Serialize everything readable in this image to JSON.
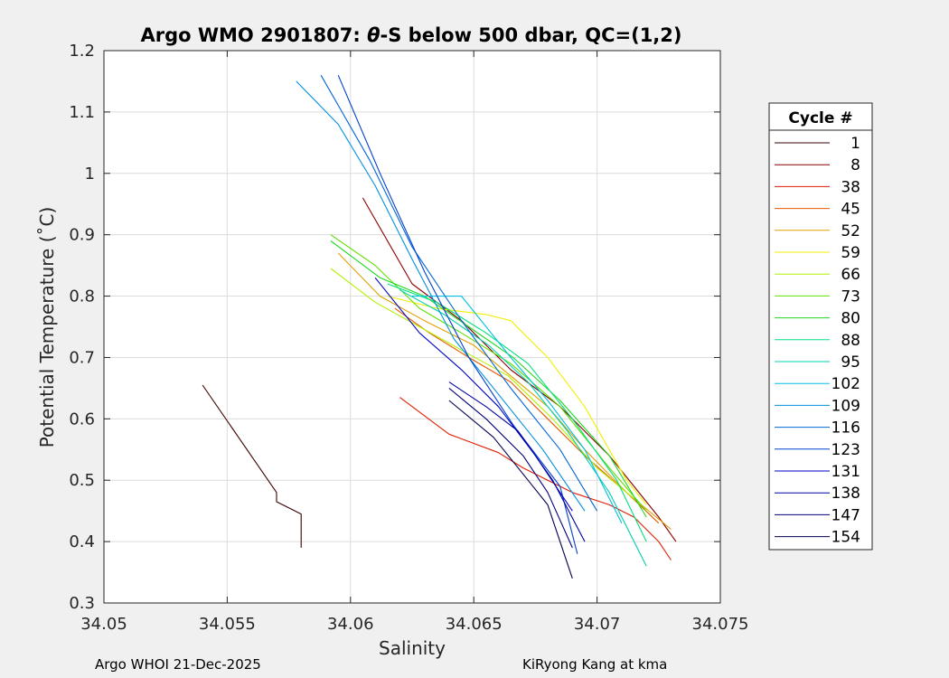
{
  "chart_data": {
    "type": "line",
    "title_prefix": "Argo WMO 2901807: ",
    "title_symbol": "θ",
    "title_suffix": "-S below 500 dbar,  QC=(1,2)",
    "xlabel": "Salinity",
    "ylabel": "Potential Temperature (˚C)",
    "xlim": [
      34.05,
      34.075
    ],
    "ylim": [
      0.3,
      1.2
    ],
    "xticks": [
      "34.05",
      "34.055",
      "34.06",
      "34.065",
      "34.07",
      "34.075"
    ],
    "yticks": [
      "0.3",
      "0.4",
      "0.5",
      "0.6",
      "0.7",
      "0.8",
      "0.9",
      "1",
      "1.1",
      "1.2"
    ],
    "grid": true,
    "legend": {
      "title": "Cycle #",
      "position": "right"
    },
    "footer_left": "Argo WHOI 21-Dec-2025",
    "footer_right": "KiRyong Kang at kma",
    "series": [
      {
        "name": "1",
        "color": "#3d0000",
        "x": [
          34.054,
          34.057,
          34.057,
          34.058,
          34.058
        ],
        "y": [
          0.655,
          0.48,
          0.465,
          0.445,
          0.39
        ]
      },
      {
        "name": "8",
        "color": "#8a0000",
        "x": [
          34.0605,
          34.0625,
          34.0645,
          34.0665,
          34.0685,
          34.0705,
          34.0715,
          34.0725,
          34.0732
        ],
        "y": [
          0.96,
          0.82,
          0.76,
          0.68,
          0.62,
          0.54,
          0.49,
          0.44,
          0.4
        ]
      },
      {
        "name": "38",
        "color": "#e01e00",
        "x": [
          34.062,
          34.064,
          34.066,
          34.067,
          34.068,
          34.069,
          34.0705,
          34.0715,
          34.0725,
          34.073
        ],
        "y": [
          0.635,
          0.575,
          0.545,
          0.52,
          0.5,
          0.48,
          0.46,
          0.44,
          0.4,
          0.37
        ]
      },
      {
        "name": "45",
        "color": "#e55a00",
        "x": [
          34.0618,
          34.0632,
          34.0648,
          34.0665,
          34.068,
          34.0695,
          34.0712,
          34.0725
        ],
        "y": [
          0.78,
          0.74,
          0.7,
          0.66,
          0.6,
          0.54,
          0.48,
          0.43
        ]
      },
      {
        "name": "52",
        "color": "#e0a000",
        "x": [
          34.0595,
          34.0612,
          34.063,
          34.065,
          34.0665,
          34.068,
          34.0695,
          34.0712,
          34.073
        ],
        "y": [
          0.87,
          0.8,
          0.76,
          0.72,
          0.67,
          0.62,
          0.55,
          0.48,
          0.42
        ]
      },
      {
        "name": "59",
        "color": "#f0f000",
        "x": [
          34.0615,
          34.0635,
          34.0655,
          34.0665,
          34.0675,
          34.068,
          34.0695,
          34.0712,
          34.072
        ],
        "y": [
          0.8,
          0.78,
          0.77,
          0.76,
          0.72,
          0.7,
          0.62,
          0.5,
          0.46
        ]
      },
      {
        "name": "66",
        "color": "#b4f000",
        "x": [
          34.0592,
          34.061,
          34.0628,
          34.0646,
          34.0664,
          34.0682,
          34.07,
          34.0718
        ],
        "y": [
          0.845,
          0.79,
          0.75,
          0.71,
          0.67,
          0.6,
          0.52,
          0.46
        ]
      },
      {
        "name": "73",
        "color": "#60e000",
        "x": [
          34.0592,
          34.061,
          34.0628,
          34.0645,
          34.0665,
          34.0685,
          34.0705,
          34.072
        ],
        "y": [
          0.9,
          0.85,
          0.78,
          0.74,
          0.69,
          0.62,
          0.52,
          0.45
        ]
      },
      {
        "name": "80",
        "color": "#1ed81e",
        "x": [
          34.0592,
          34.0612,
          34.063,
          34.0648,
          34.0666,
          34.0685,
          34.0705,
          34.072
        ],
        "y": [
          0.89,
          0.83,
          0.8,
          0.75,
          0.7,
          0.63,
          0.54,
          0.44
        ]
      },
      {
        "name": "88",
        "color": "#00e080",
        "x": [
          34.0615,
          34.0635,
          34.0655,
          34.0672,
          34.069,
          34.0708,
          34.072
        ],
        "y": [
          0.82,
          0.79,
          0.74,
          0.69,
          0.6,
          0.5,
          0.4
        ]
      },
      {
        "name": "95",
        "color": "#00d0b0",
        "x": [
          34.062,
          34.0638,
          34.0656,
          34.0672,
          34.0688,
          34.0705,
          34.072
        ],
        "y": [
          0.81,
          0.77,
          0.72,
          0.66,
          0.58,
          0.48,
          0.36
        ]
      },
      {
        "name": "102",
        "color": "#00c0e0",
        "x": [
          34.0625,
          34.0645,
          34.0665,
          34.068,
          34.0695,
          34.071
        ],
        "y": [
          0.8,
          0.8,
          0.7,
          0.63,
          0.55,
          0.43
        ]
      },
      {
        "name": "109",
        "color": "#0090e0",
        "x": [
          34.0578,
          34.0595,
          34.061,
          34.0625,
          34.0642,
          34.066,
          34.0678,
          34.0695
        ],
        "y": [
          1.15,
          1.08,
          0.98,
          0.86,
          0.73,
          0.64,
          0.55,
          0.45
        ]
      },
      {
        "name": "116",
        "color": "#0066d8",
        "x": [
          34.0588,
          34.0608,
          34.0625,
          34.0645,
          34.0665,
          34.0685,
          34.07
        ],
        "y": [
          1.16,
          1.02,
          0.88,
          0.76,
          0.65,
          0.55,
          0.45
        ]
      },
      {
        "name": "123",
        "color": "#0040d0",
        "x": [
          34.0595,
          34.0612,
          34.063,
          34.0648,
          34.0666,
          34.0685,
          34.0692
        ],
        "y": [
          1.16,
          1.0,
          0.84,
          0.7,
          0.59,
          0.49,
          0.38
        ]
      },
      {
        "name": "131",
        "color": "#0000c8",
        "x": [
          34.061,
          34.0628,
          34.0645,
          34.066,
          34.0675,
          34.069
        ],
        "y": [
          0.83,
          0.74,
          0.68,
          0.62,
          0.54,
          0.45
        ]
      },
      {
        "name": "138",
        "color": "#0000a0",
        "x": [
          34.064,
          34.0655,
          34.0668,
          34.0682,
          34.0695
        ],
        "y": [
          0.66,
          0.62,
          0.58,
          0.5,
          0.4
        ]
      },
      {
        "name": "147",
        "color": "#000078",
        "x": [
          34.064,
          34.0655,
          34.067,
          34.068,
          34.069
        ],
        "y": [
          0.65,
          0.6,
          0.54,
          0.48,
          0.39
        ]
      },
      {
        "name": "154",
        "color": "#000050",
        "x": [
          34.064,
          34.0658,
          34.0672,
          34.068,
          34.069
        ],
        "y": [
          0.63,
          0.57,
          0.5,
          0.46,
          0.34
        ]
      }
    ]
  }
}
